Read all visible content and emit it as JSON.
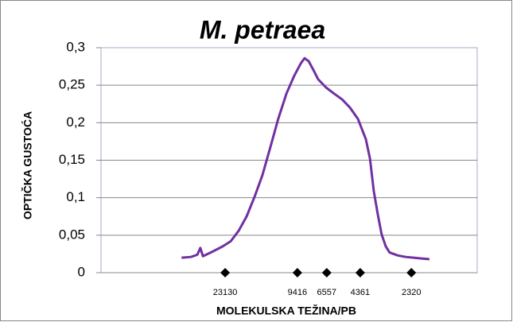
{
  "chart_data": {
    "type": "line",
    "title": "M. petraea",
    "x_label": "MOLEKULSKA TEŽINA/PB",
    "y_label": "OPTIČKA GUSTOĆA",
    "xlim": [
      0,
      100
    ],
    "ylim": [
      0,
      0.3
    ],
    "yticks": [
      0,
      {
        "value": 0.05,
        "label": "0,05"
      },
      {
        "value": 0.1,
        "label": "0,1"
      },
      {
        "value": 0.15,
        "label": "0,15"
      },
      {
        "value": 0.2,
        "label": "0,2"
      },
      {
        "value": 0.25,
        "label": "0,25"
      },
      {
        "value": 0.3,
        "label": "0,3"
      }
    ],
    "grid": true,
    "series": [
      {
        "color": "#7030a0",
        "x": [
          21.4,
          23.9,
          25.6,
          26.4,
          27.1,
          29.2,
          32.3,
          34.5,
          36.6,
          38.7,
          40.8,
          42.9,
          45.0,
          47.1,
          49.3,
          51.4,
          53.1,
          54.1,
          55.2,
          56.7,
          57.7,
          59.8,
          61.9,
          64.1,
          66.2,
          68.3,
          70.4,
          71.5,
          72.5,
          73.6,
          74.6,
          75.7,
          76.7,
          78.9,
          81.0,
          83.1,
          85.2,
          87.3
        ],
        "values": [
          0.02,
          0.021,
          0.024,
          0.033,
          0.022,
          0.027,
          0.035,
          0.042,
          0.056,
          0.075,
          0.101,
          0.13,
          0.167,
          0.205,
          0.239,
          0.263,
          0.279,
          0.286,
          0.282,
          0.268,
          0.258,
          0.247,
          0.239,
          0.231,
          0.22,
          0.205,
          0.178,
          0.152,
          0.109,
          0.077,
          0.051,
          0.035,
          0.027,
          0.023,
          0.021,
          0.02,
          0.019,
          0.018
        ]
      }
    ],
    "markers": {
      "x": [
        33,
        52.2,
        60,
        68.9,
        82.5
      ],
      "values": [
        0,
        0,
        0,
        0,
        0
      ],
      "labels": [
        "23130",
        "9416",
        "6557",
        "4361",
        "2320"
      ]
    }
  }
}
